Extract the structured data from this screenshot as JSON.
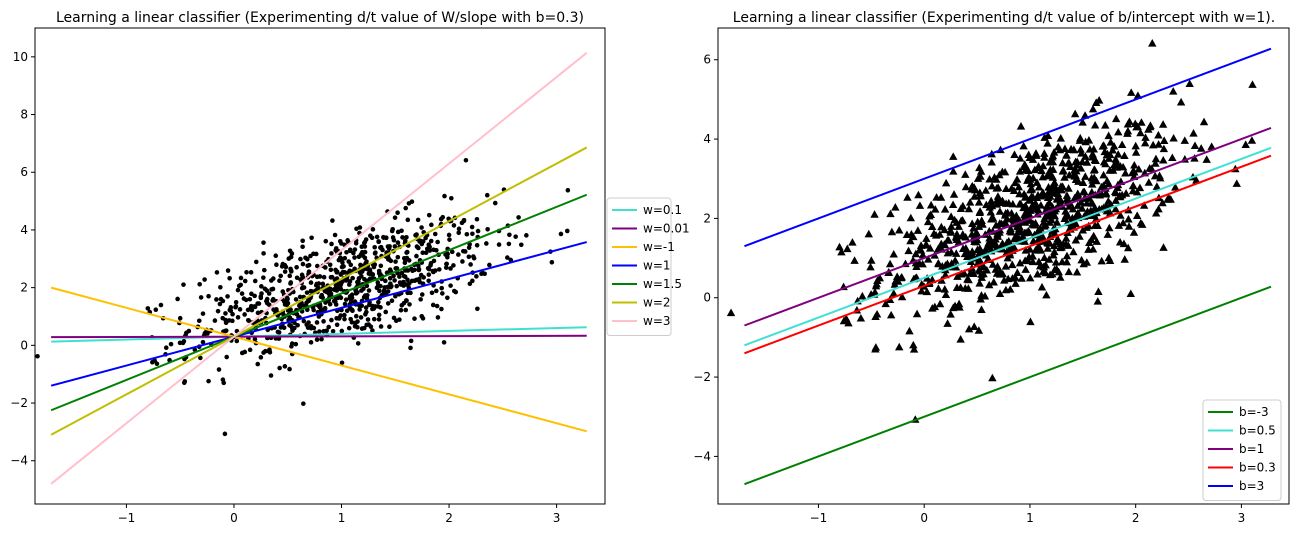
{
  "chart_data": [
    {
      "type": "scatter",
      "title": "Learning a linear classifier (Experimenting d/t value of W/slope with b=0.3)",
      "xlabel": "",
      "ylabel": "",
      "xlim": [
        -1.85,
        3.45
      ],
      "ylim": [
        -5.5,
        11.0
      ],
      "xticks": [
        -1,
        0,
        1,
        2,
        3
      ],
      "xtick_labels": [
        "−1",
        "0",
        "1",
        "2",
        "3"
      ],
      "yticks": [
        -4,
        -2,
        0,
        2,
        4,
        6,
        8,
        10
      ],
      "ytick_labels": [
        "−4",
        "−2",
        "0",
        "2",
        "4",
        "6",
        "8",
        "10"
      ],
      "grid": false,
      "legend_position": "outside-right",
      "marker": "circle",
      "marker_color": "#000000",
      "points_note_seed": 7,
      "scatter_summary": {
        "n": 900,
        "x_mean": 1.0,
        "x_sd": 0.7,
        "slope": 1.0,
        "intercept": 1.0,
        "noise_sd": 1.0
      },
      "series": [
        {
          "name": "w=0.1",
          "color": "#40e0d0",
          "slope": 0.1,
          "intercept": 0.3,
          "x": [
            -1.7,
            3.28
          ]
        },
        {
          "name": "w=0.01",
          "color": "#800080",
          "slope": 0.01,
          "intercept": 0.3,
          "x": [
            -1.7,
            3.28
          ]
        },
        {
          "name": "w=-1",
          "color": "#ffc000",
          "slope": -1,
          "intercept": 0.3,
          "x": [
            -1.7,
            3.28
          ]
        },
        {
          "name": "w=1",
          "color": "#0000ff",
          "slope": 1,
          "intercept": 0.3,
          "x": [
            -1.7,
            3.28
          ]
        },
        {
          "name": "w=1.5",
          "color": "#008000",
          "slope": 1.5,
          "intercept": 0.3,
          "x": [
            -1.7,
            3.28
          ]
        },
        {
          "name": "w=2",
          "color": "#bfbf00",
          "slope": 2,
          "intercept": 0.3,
          "x": [
            -1.7,
            3.28
          ]
        },
        {
          "name": "w=3",
          "color": "#ffc0cb",
          "slope": 3,
          "intercept": 0.3,
          "x": [
            -1.7,
            3.28
          ]
        }
      ]
    },
    {
      "type": "scatter",
      "title": "Learning a linear classifier (Experimenting d/t value of b/intercept with w=1).",
      "xlabel": "",
      "ylabel": "",
      "xlim": [
        -1.95,
        3.45
      ],
      "ylim": [
        -5.2,
        6.8
      ],
      "xticks": [
        -1,
        0,
        1,
        2,
        3
      ],
      "xtick_labels": [
        "−1",
        "0",
        "1",
        "2",
        "3"
      ],
      "yticks": [
        -4,
        -2,
        0,
        2,
        4,
        6
      ],
      "ytick_labels": [
        "−4",
        "−2",
        "0",
        "2",
        "4",
        "6"
      ],
      "grid": false,
      "legend_position": "lower-right",
      "marker": "triangle",
      "marker_color": "#000000",
      "scatter_summary": {
        "n": 900,
        "x_mean": 1.0,
        "x_sd": 0.7,
        "slope": 1.0,
        "intercept": 1.0,
        "noise_sd": 1.0
      },
      "series": [
        {
          "name": "b=-3",
          "color": "#008000",
          "slope": 1,
          "intercept": -3,
          "x": [
            -1.7,
            3.28
          ]
        },
        {
          "name": "b=0.5",
          "color": "#40e0d0",
          "slope": 1,
          "intercept": 0.5,
          "x": [
            -1.7,
            3.28
          ]
        },
        {
          "name": "b=1",
          "color": "#800080",
          "slope": 1,
          "intercept": 1,
          "x": [
            -1.7,
            3.28
          ]
        },
        {
          "name": "b=0.3",
          "color": "#ff0000",
          "slope": 1,
          "intercept": 0.3,
          "x": [
            -1.7,
            3.28
          ]
        },
        {
          "name": "b=3",
          "color": "#0000ff",
          "slope": 1,
          "intercept": 3,
          "x": [
            -1.7,
            3.28
          ]
        }
      ]
    }
  ]
}
